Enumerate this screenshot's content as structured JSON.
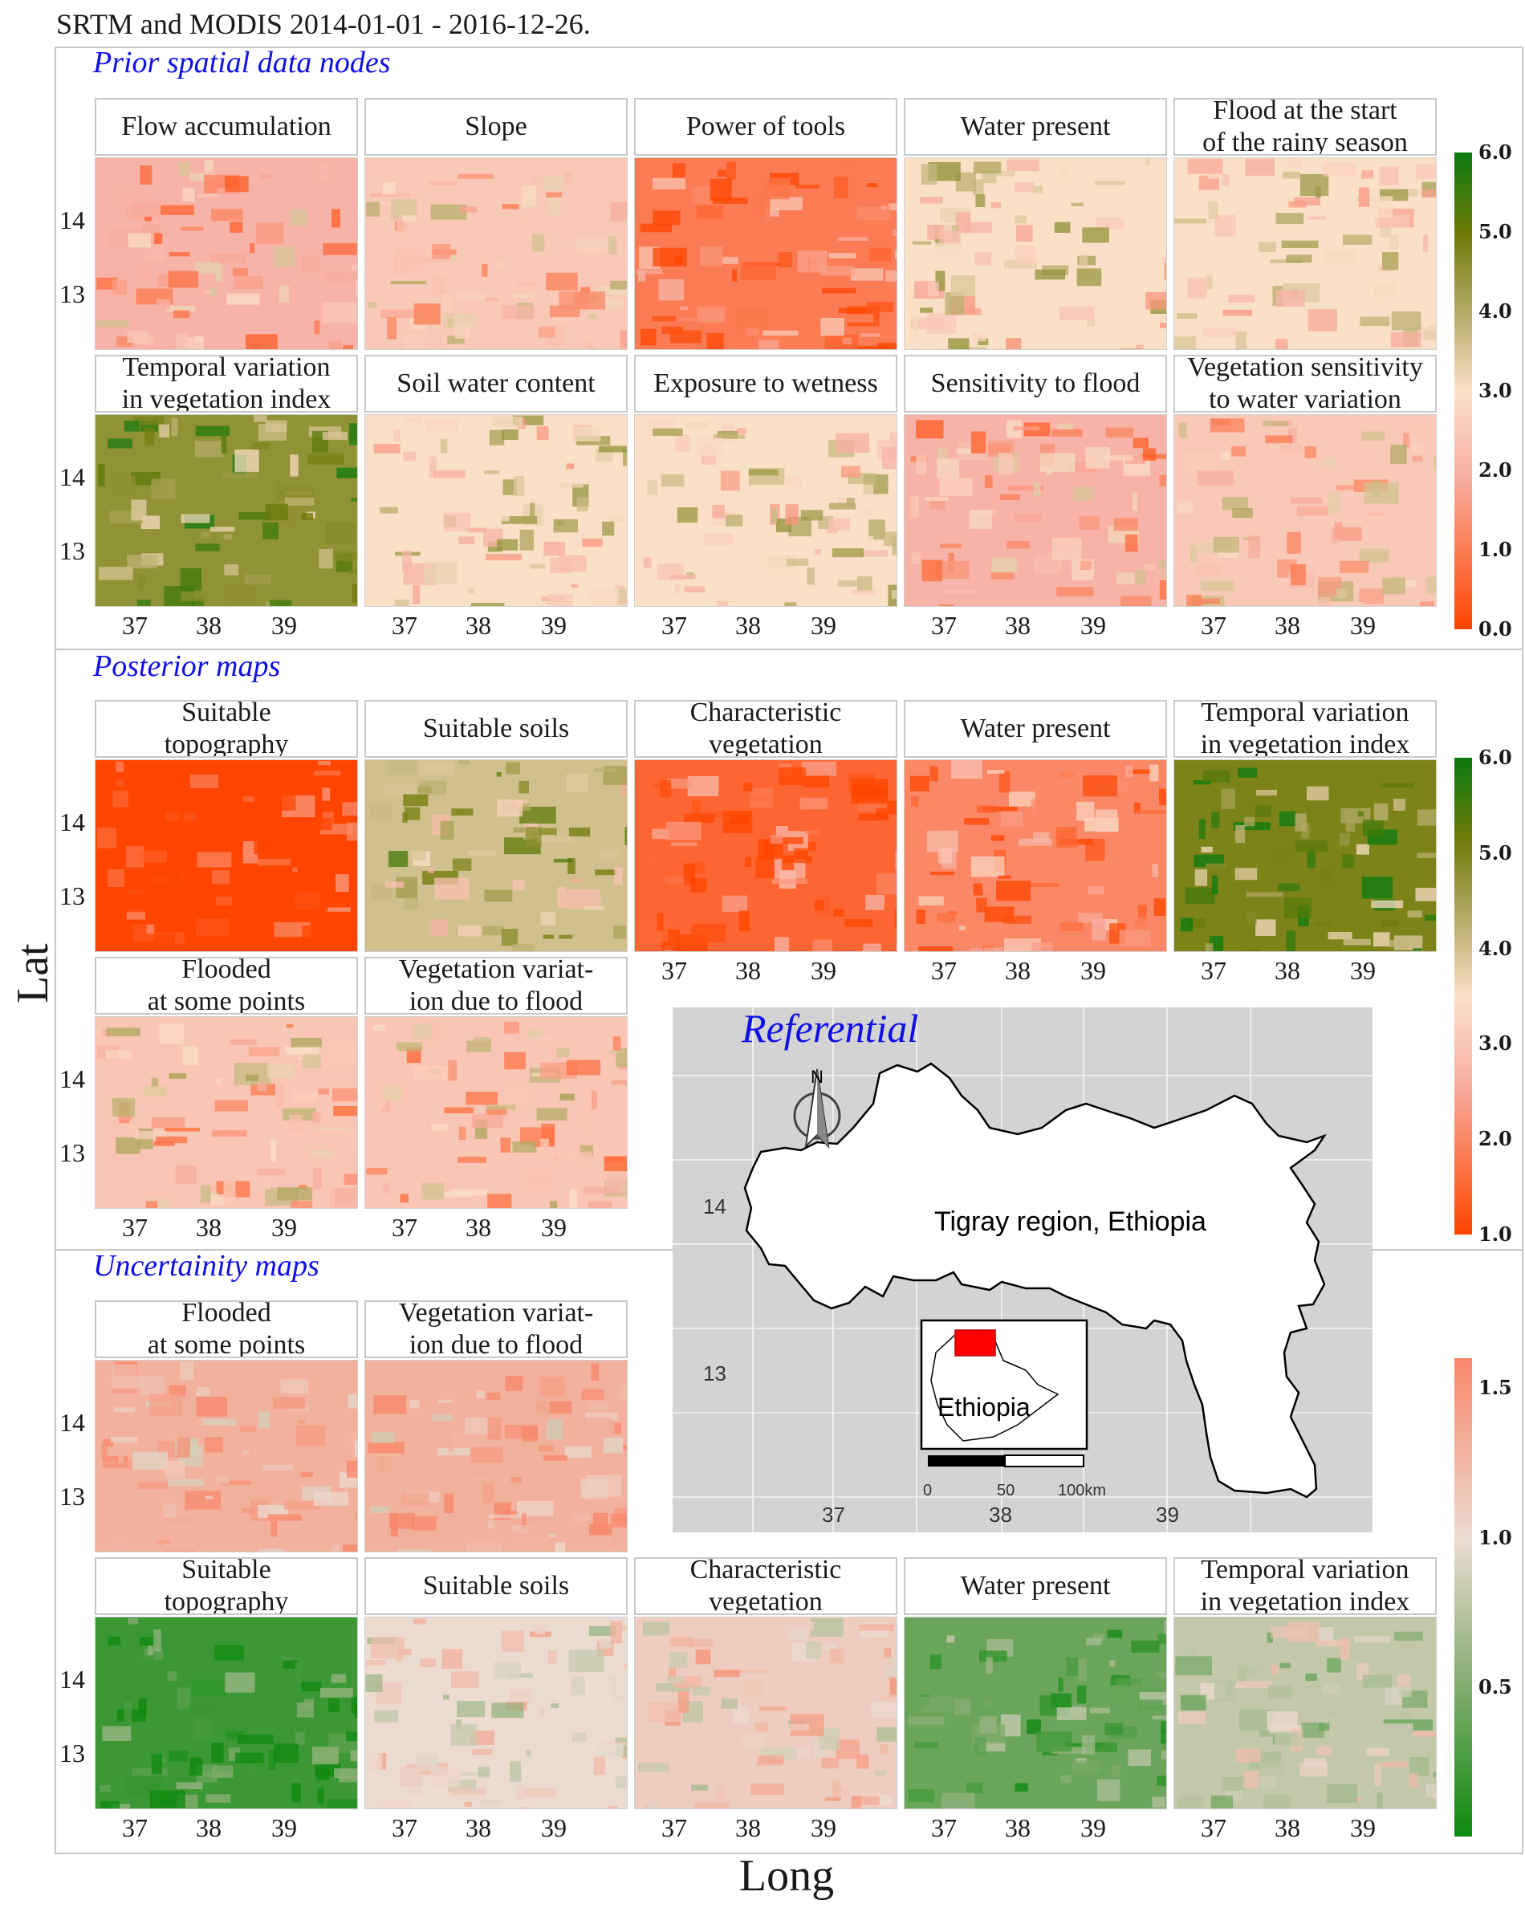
{
  "figure": {
    "title": "SRTM and MODIS 2014-01-01 - 2016-12-26.",
    "ylabel": "Lat",
    "xlabel": "Long"
  },
  "sections": {
    "prior": "Prior spatial data nodes",
    "posterior": "Posterior maps",
    "uncertainty": "Uncertainity maps"
  },
  "chart_data": {
    "type": "heatmap",
    "x_ticks": [
      "37",
      "38",
      "39"
    ],
    "y_ticks": [
      "14",
      "13"
    ],
    "panels": [
      {
        "section": "prior",
        "label": "Flow accumulation",
        "dominant_value": 2.0
      },
      {
        "section": "prior",
        "label": "Slope",
        "dominant_value": 2.5
      },
      {
        "section": "prior",
        "label": "Power of tools",
        "dominant_value": 1.0
      },
      {
        "section": "prior",
        "label": "Water present",
        "dominant_value": 3.0
      },
      {
        "section": "prior",
        "label": "Flood at the start\nof the rainy season",
        "dominant_value": 3.0
      },
      {
        "section": "prior",
        "label": "Temporal variation\nin vegetation index",
        "dominant_value": 4.5
      },
      {
        "section": "prior",
        "label": "Soil water content",
        "dominant_value": 3.0
      },
      {
        "section": "prior",
        "label": "Exposure to wetness",
        "dominant_value": 3.0
      },
      {
        "section": "prior",
        "label": "Sensitivity to flood",
        "dominant_value": 2.0
      },
      {
        "section": "prior",
        "label": "Vegetation sensitivity\nto water variation",
        "dominant_value": 2.5
      },
      {
        "section": "posterior",
        "label": "Suitable\ntopography",
        "dominant_value": 1.0
      },
      {
        "section": "posterior",
        "label": "Suitable soils",
        "dominant_value": 4.0
      },
      {
        "section": "posterior",
        "label": "Characteristic\nvegetation",
        "dominant_value": 1.5
      },
      {
        "section": "posterior",
        "label": "Water present",
        "dominant_value": 2.0
      },
      {
        "section": "posterior",
        "label": "Temporal variation\nin vegetation index",
        "dominant_value": 5.0
      },
      {
        "section": "posterior",
        "label": "Flooded\nat some points",
        "dominant_value": 3.0
      },
      {
        "section": "posterior",
        "label": "Vegetation variat-\nion due to flood",
        "dominant_value": 3.0
      },
      {
        "section": "uncertainty",
        "label": "Flooded\nat some points",
        "dominant_value": 1.3
      },
      {
        "section": "uncertainty",
        "label": "Vegetation variat-\nion due to flood",
        "dominant_value": 1.3
      },
      {
        "section": "uncertainty",
        "label": "Suitable\ntopography",
        "dominant_value": 0.2
      },
      {
        "section": "uncertainty",
        "label": "Suitable soils",
        "dominant_value": 1.0
      },
      {
        "section": "uncertainty",
        "label": "Characteristic\nvegetation",
        "dominant_value": 1.1
      },
      {
        "section": "uncertainty",
        "label": "Water present",
        "dominant_value": 0.4
      },
      {
        "section": "uncertainty",
        "label": "Temporal variation\nin vegetation index",
        "dominant_value": 0.8
      }
    ],
    "legends": [
      {
        "section": "prior",
        "range": [
          0,
          6
        ],
        "labels": [
          "6.0",
          "5.0",
          "4.0",
          "3.0",
          "2.0",
          "1.0",
          "0.0"
        ]
      },
      {
        "section": "posterior",
        "range": [
          1,
          6
        ],
        "labels": [
          "6.0",
          "5.0",
          "4.0",
          "3.0",
          "2.0",
          "1.0"
        ]
      },
      {
        "section": "uncertainty",
        "range": [
          0,
          1.6
        ],
        "labels": [
          "1.5",
          "1.0",
          "0.5"
        ]
      }
    ]
  },
  "referential": {
    "title": "Referential",
    "region_label": "Tigray region, Ethiopia",
    "inset_label": "Ethiopia",
    "north": "N",
    "lat_ticks": [
      "14",
      "13"
    ],
    "long_ticks": [
      "37",
      "38",
      "39"
    ],
    "scale_labels": [
      "0",
      "50",
      "100km"
    ]
  },
  "colors": {
    "section_title": "#1010e6",
    "low": "#ff4500",
    "mid": "#f6b4a8",
    "olive": "#757a0c",
    "high": "#137a13",
    "panel_bg": "#d3d3d3"
  }
}
